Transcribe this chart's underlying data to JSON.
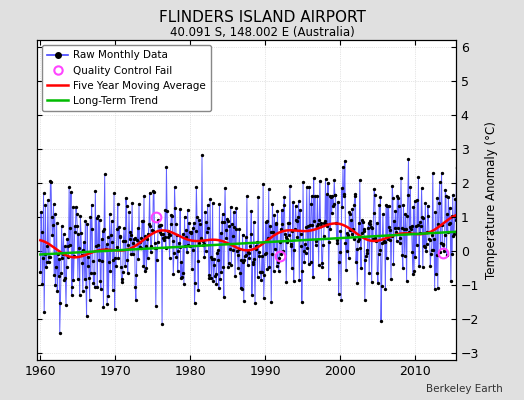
{
  "title": "FLINDERS ISLAND AIRPORT",
  "subtitle": "40.091 S, 148.002 E (Australia)",
  "ylabel": "Temperature Anomaly (°C)",
  "credit": "Berkeley Earth",
  "xlim": [
    1959.5,
    2015.5
  ],
  "ylim": [
    -3.2,
    6.2
  ],
  "yticks": [
    -3,
    -2,
    -1,
    0,
    1,
    2,
    3,
    4,
    5,
    6
  ],
  "xticks": [
    1960,
    1970,
    1980,
    1990,
    2000,
    2010
  ],
  "bg_color": "#e0e0e0",
  "plot_bg_color": "#ffffff",
  "raw_color": "#4444ff",
  "smooth_color": "#ff0000",
  "trend_color": "#00bb00",
  "qc_color": "#ff44ff",
  "seed": 123
}
